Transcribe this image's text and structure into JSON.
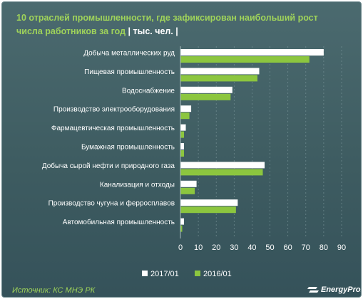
{
  "chart_data": {
    "type": "bar",
    "orientation": "horizontal",
    "title": "10 отраслей промышленности,  где зафиксирован  наибольший  рост числа работников  за год",
    "unit": "| тыс. чел. |",
    "categories": [
      "Добыча металлических руд",
      "Пищевая промышленность",
      "Водоснабжение",
      "Производство электрооборудования",
      "Фармацевтическая промышленность",
      "Бумажная промышленность",
      "Добыча сырой нефти и природного газа",
      "Канализация и отходы",
      "Производство чугуна и ферросплавов",
      "Автомобильная промышленность"
    ],
    "series": [
      {
        "name": "2017/01",
        "color": "#ffffff",
        "values": [
          80,
          44,
          29,
          6,
          3,
          2,
          47,
          9,
          32,
          2
        ]
      },
      {
        "name": "2016/01",
        "color": "#8cc63f",
        "values": [
          72,
          43,
          28,
          5,
          2,
          2,
          46,
          8,
          31,
          1
        ]
      }
    ],
    "xlim": [
      0,
      90
    ],
    "xticks": [
      0,
      10,
      20,
      30,
      40,
      50,
      60,
      70,
      80,
      90
    ],
    "grid": true,
    "legend_position": "bottom"
  },
  "source": "Источник: КС МНЭ РК",
  "logo_text": "EnergyProm"
}
